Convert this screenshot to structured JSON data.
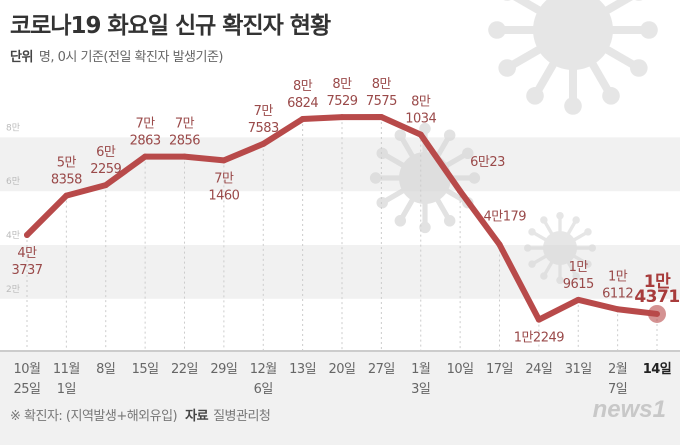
{
  "header": {
    "title": "코로나19 화요일 신규 확진자 현황",
    "unit_label": "단위",
    "unit_text": "명, 0시 기준(전일 확진자 발생기준)"
  },
  "footer": {
    "note": "※ 확진자: (지역발생+해외유입)",
    "source_label": "자료",
    "source": "질병관리청",
    "logo": "news1"
  },
  "chart_data": {
    "type": "line",
    "title": "코로나19 화요일 신규 확진자 현황",
    "xlabel": "",
    "ylabel": "",
    "ylim": [
      0,
      95000
    ],
    "yticks": [
      {
        "value": 20000,
        "label": "2만"
      },
      {
        "value": 40000,
        "label": "4만"
      },
      {
        "value": 60000,
        "label": "6만"
      },
      {
        "value": 80000,
        "label": "8만"
      }
    ],
    "shaded_bands": [
      [
        20000,
        40000
      ],
      [
        60000,
        80000
      ]
    ],
    "line_color": "#b84a4a",
    "categories": [
      [
        "10월",
        "25일"
      ],
      [
        "11월",
        "1일"
      ],
      [
        "8일"
      ],
      [
        "15일"
      ],
      [
        "22일"
      ],
      [
        "29일"
      ],
      [
        "12월",
        "6일"
      ],
      [
        "13일"
      ],
      [
        "20일"
      ],
      [
        "27일"
      ],
      [
        "1월",
        "3일"
      ],
      [
        "10일"
      ],
      [
        "17일"
      ],
      [
        "24일"
      ],
      [
        "31일"
      ],
      [
        "2월",
        "7일"
      ],
      [
        "14일"
      ]
    ],
    "values": [
      43737,
      58358,
      62259,
      72863,
      72856,
      71460,
      77583,
      86824,
      87529,
      87575,
      81034,
      60023,
      40179,
      12249,
      19615,
      16112,
      14371
    ],
    "data_labels": [
      [
        "4만",
        "3737"
      ],
      [
        "5만",
        "8358"
      ],
      [
        "6만",
        "2259"
      ],
      [
        "7만",
        "2863"
      ],
      [
        "7만",
        "2856"
      ],
      [
        "7만",
        "1460"
      ],
      [
        "7만",
        "7583"
      ],
      [
        "8만",
        "6824"
      ],
      [
        "8만",
        "7529"
      ],
      [
        "8만",
        "7575"
      ],
      [
        "8만",
        "1034"
      ],
      [
        "6만23"
      ],
      [
        "4만179"
      ],
      [
        "1만2249"
      ],
      [
        "1만",
        "9615"
      ],
      [
        "1만",
        "6112"
      ],
      [
        "1만",
        "4371"
      ]
    ],
    "highlight_last": true
  }
}
